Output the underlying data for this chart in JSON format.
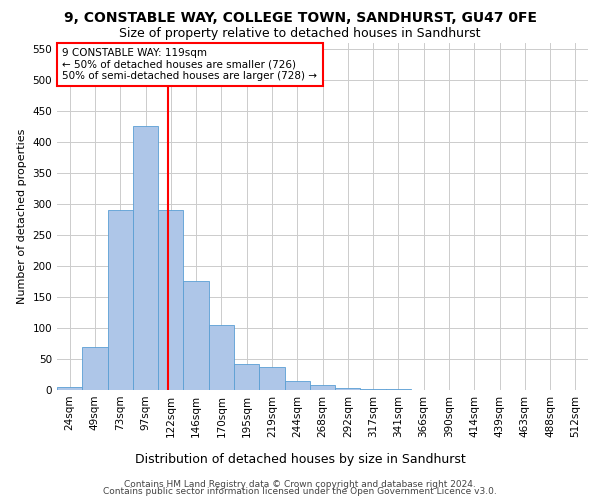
{
  "title1": "9, CONSTABLE WAY, COLLEGE TOWN, SANDHURST, GU47 0FE",
  "title2": "Size of property relative to detached houses in Sandhurst",
  "xlabel": "Distribution of detached houses by size in Sandhurst",
  "ylabel": "Number of detached properties",
  "footer1": "Contains HM Land Registry data © Crown copyright and database right 2024.",
  "footer2": "Contains public sector information licensed under the Open Government Licence v3.0.",
  "categories": [
    "24sqm",
    "49sqm",
    "73sqm",
    "97sqm",
    "122sqm",
    "146sqm",
    "170sqm",
    "195sqm",
    "219sqm",
    "244sqm",
    "268sqm",
    "292sqm",
    "317sqm",
    "341sqm",
    "366sqm",
    "390sqm",
    "414sqm",
    "439sqm",
    "463sqm",
    "488sqm",
    "512sqm"
  ],
  "values": [
    5,
    70,
    290,
    425,
    290,
    175,
    105,
    42,
    37,
    15,
    8,
    4,
    2,
    1,
    0.5,
    0,
    0.5,
    0,
    0,
    0.5,
    0
  ],
  "bar_color": "#aec6e8",
  "bar_edge_color": "#5a9fd4",
  "bar_width": 1.0,
  "vline_x": 3.88,
  "vline_color": "red",
  "annotation_text": "9 CONSTABLE WAY: 119sqm\n← 50% of detached houses are smaller (726)\n50% of semi-detached houses are larger (728) →",
  "annotation_box_color": "white",
  "annotation_box_edge_color": "red",
  "ylim": [
    0,
    560
  ],
  "yticks": [
    0,
    50,
    100,
    150,
    200,
    250,
    300,
    350,
    400,
    450,
    500,
    550
  ],
  "grid_color": "#cccccc",
  "bg_color": "white",
  "title1_fontsize": 10,
  "title2_fontsize": 9,
  "xlabel_fontsize": 9,
  "ylabel_fontsize": 8,
  "tick_fontsize": 7.5,
  "annotation_fontsize": 7.5,
  "footer_fontsize": 6.5
}
